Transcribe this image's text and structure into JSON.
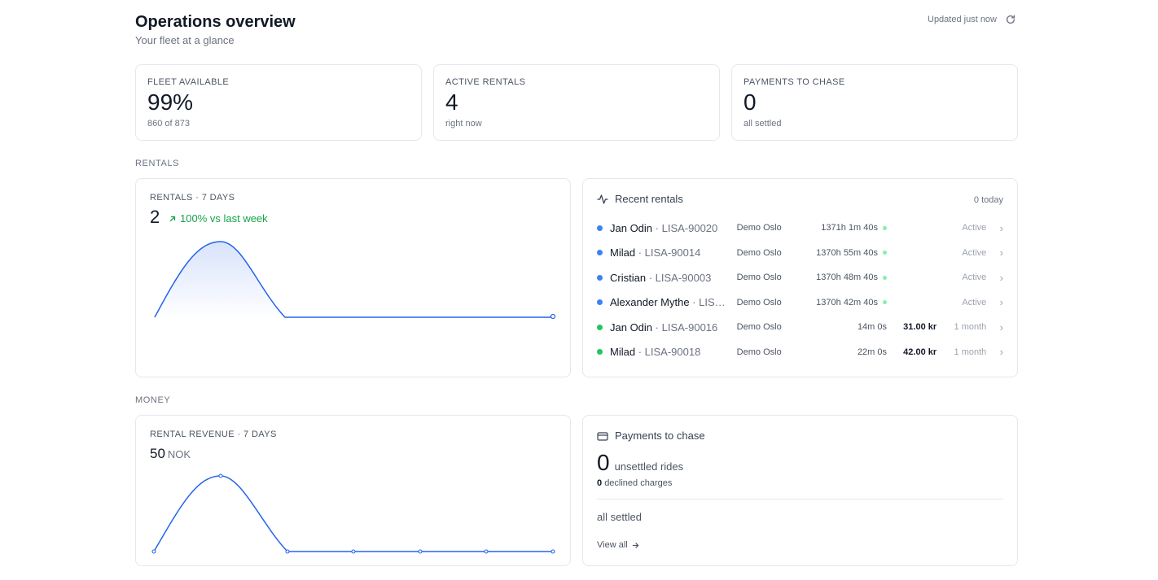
{
  "header": {
    "title": "Operations overview",
    "subtitle": "Your fleet at a glance",
    "updated": "Updated just now",
    "refresh_icon": "refresh-icon"
  },
  "kpis": [
    {
      "label": "FLEET AVAILABLE",
      "value": "99%",
      "sub": "860 of 873"
    },
    {
      "label": "ACTIVE RENTALS",
      "value": "4",
      "sub": "right now"
    },
    {
      "label": "PAYMENTS TO CHASE",
      "value": "0",
      "sub": "all settled"
    }
  ],
  "sections": {
    "rentals": "RENTALS",
    "money": "MONEY"
  },
  "rentals_chart": {
    "label": "RENTALS · 7 DAYS",
    "value": "2",
    "delta": "100% vs last week",
    "accent": "#2563eb"
  },
  "revenue_chart": {
    "label": "RENTAL REVENUE · 7 DAYS",
    "value": "50",
    "unit": "NOK",
    "accent": "#2563eb"
  },
  "recent": {
    "title": "Recent rentals",
    "count": "0 today",
    "icon": "activity-icon",
    "rows": [
      {
        "name": "Jan Odin",
        "id": " · LISA-90020",
        "city": "Demo Oslo",
        "duration": "1371h 1m 40s",
        "live": true,
        "price": "",
        "status": "Active",
        "dot": "#3b82f6"
      },
      {
        "name": "Milad",
        "id": " · LISA-90014",
        "city": "Demo Oslo",
        "duration": "1370h 55m 40s",
        "live": true,
        "price": "",
        "status": "Active",
        "dot": "#3b82f6"
      },
      {
        "name": "Cristian",
        "id": " · LISA-90003",
        "city": "Demo Oslo",
        "duration": "1370h 48m 40s",
        "live": true,
        "price": "",
        "status": "Active",
        "dot": "#3b82f6"
      },
      {
        "name": "Alexander Mythe",
        "id": " · LISA-...",
        "city": "Demo Oslo",
        "duration": "1370h 42m 40s",
        "live": true,
        "price": "",
        "status": "Active",
        "dot": "#3b82f6"
      },
      {
        "name": "Jan Odin",
        "id": " · LISA-90016",
        "city": "Demo Oslo",
        "duration": "14m 0s",
        "live": false,
        "price": "31.00 kr",
        "status": "1 month",
        "dot": "#22c55e"
      },
      {
        "name": "Milad",
        "id": " · LISA-90018",
        "city": "Demo Oslo",
        "duration": "22m 0s",
        "live": false,
        "price": "42.00 kr",
        "status": "1 month",
        "dot": "#22c55e"
      }
    ]
  },
  "payments": {
    "title": "Payments to chase",
    "icon": "credit-card-icon",
    "count": "0",
    "count_label": "unsettled rides",
    "declined_count": "0",
    "declined_label": "declined charges",
    "settled": "all settled",
    "view_all": "View all"
  }
}
